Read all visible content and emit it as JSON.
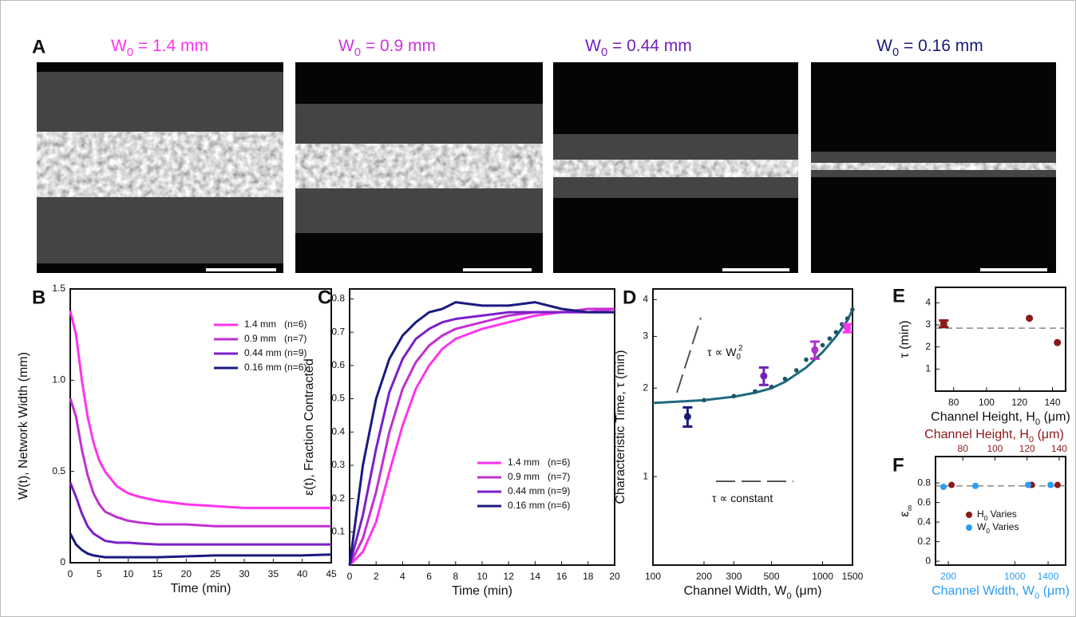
{
  "panel_a": {
    "panel": "A",
    "images": [
      {
        "title": {
          "text": "W",
          "sub": "0",
          "after": " = 1.4 mm"
        },
        "color": "#ff33ee"
      },
      {
        "title": {
          "text": "W",
          "sub": "0",
          "after": " = 0.9 mm"
        },
        "color": "#cc33dd"
      },
      {
        "title": {
          "text": "W",
          "sub": "0",
          "after": " = 0.44 mm"
        },
        "color": "#7022b8"
      },
      {
        "title": {
          "text": "W",
          "sub": "0",
          "after": " = 0.16 mm"
        },
        "color": "#1a1a7a"
      }
    ]
  },
  "chart_data": [
    {
      "panel": "B",
      "type": "line",
      "xlabel": "Time (min)",
      "ylabel": "W(t), Network Width (mm)",
      "legend": "upper right",
      "x": [
        0,
        1,
        2,
        3,
        4,
        5,
        6,
        8,
        10,
        12,
        15,
        20,
        25,
        30,
        35,
        40,
        45
      ],
      "xlim": [
        0,
        45
      ],
      "xticks": [
        0,
        5,
        10,
        15,
        20,
        25,
        30,
        35,
        40,
        45
      ],
      "ylim": [
        0,
        1.5
      ],
      "yticks": [
        0,
        0.5,
        {
          "value": 1,
          "label": "1.0"
        },
        1.5
      ],
      "series": [
        {
          "name": "1.4 mm   (n=6)",
          "color": "#ff33ee",
          "values": [
            1.38,
            1.25,
            1.0,
            0.8,
            0.66,
            0.56,
            0.5,
            0.42,
            0.38,
            0.36,
            0.34,
            0.32,
            0.31,
            0.3,
            0.3,
            0.3,
            0.3
          ]
        },
        {
          "name": "0.9 mm   (n=7)",
          "color": "#c030d0",
          "values": [
            0.9,
            0.8,
            0.62,
            0.48,
            0.38,
            0.32,
            0.28,
            0.25,
            0.23,
            0.22,
            0.21,
            0.21,
            0.2,
            0.2,
            0.2,
            0.2,
            0.2
          ]
        },
        {
          "name": "0.44 mm (n=9)",
          "color": "#7a20c8",
          "values": [
            0.44,
            0.36,
            0.27,
            0.2,
            0.16,
            0.14,
            0.12,
            0.11,
            0.11,
            0.105,
            0.1,
            0.1,
            0.1,
            0.1,
            0.1,
            0.1,
            0.1
          ]
        },
        {
          "name": "0.16 mm (n=6)",
          "color": "#1a1a80",
          "values": [
            0.16,
            0.1,
            0.07,
            0.05,
            0.04,
            0.035,
            0.03,
            0.03,
            0.03,
            0.03,
            0.03,
            0.035,
            0.04,
            0.04,
            0.04,
            0.04,
            0.045
          ]
        }
      ]
    },
    {
      "panel": "C",
      "type": "line",
      "xlabel": "Time (min)",
      "ylabel": "ε(t), Fraction Contracted",
      "legend": "lower right",
      "x": [
        0,
        1,
        2,
        3,
        4,
        5,
        6,
        7,
        8,
        10,
        12,
        14,
        16,
        18,
        20
      ],
      "xlim": [
        0,
        20
      ],
      "xticks": [
        0,
        2,
        4,
        6,
        8,
        10,
        12,
        14,
        16,
        18,
        20
      ],
      "ylim": [
        0,
        0.83
      ],
      "yticks": [
        0.1,
        0.2,
        0.3,
        0.4,
        0.5,
        0.6,
        0.7,
        0.8
      ],
      "series": [
        {
          "name": "1.4 mm   (n=6)",
          "color": "#ff33ee",
          "values": [
            0,
            0.04,
            0.13,
            0.28,
            0.42,
            0.53,
            0.6,
            0.65,
            0.68,
            0.71,
            0.73,
            0.75,
            0.76,
            0.76,
            0.77
          ]
        },
        {
          "name": "0.9 mm   (n=7)",
          "color": "#c030d0",
          "values": [
            0,
            0.08,
            0.22,
            0.4,
            0.53,
            0.61,
            0.66,
            0.69,
            0.71,
            0.73,
            0.75,
            0.76,
            0.76,
            0.77,
            0.77
          ]
        },
        {
          "name": "0.44 mm (n=9)",
          "color": "#7a20c8",
          "values": [
            0,
            0.15,
            0.35,
            0.52,
            0.62,
            0.68,
            0.71,
            0.73,
            0.74,
            0.75,
            0.76,
            0.76,
            0.76,
            0.76,
            0.76
          ]
        },
        {
          "name": "0.16 mm (n=6)",
          "color": "#1a1a80",
          "values": [
            0,
            0.3,
            0.5,
            0.62,
            0.69,
            0.73,
            0.76,
            0.77,
            0.79,
            0.78,
            0.78,
            0.79,
            0.77,
            0.76,
            0.76
          ]
        }
      ]
    },
    {
      "panel": "D",
      "type": "scatter",
      "xscale": "log",
      "yscale": "log",
      "xlabel": {
        "text": "Channel Width, W",
        "sub": "0",
        "after": " (μm)"
      },
      "ylabel": "Characteristic Time, τ (min)",
      "xlim": [
        100,
        1500
      ],
      "xticks": [
        100,
        200,
        300,
        500,
        1000,
        1500
      ],
      "ylim": [
        0.5,
        4.35
      ],
      "yticks": [
        1,
        2,
        3,
        4
      ],
      "points": {
        "x": [
          160,
          450,
          900,
          1400
        ],
        "values": [
          1.6,
          2.2,
          2.7,
          3.2
        ],
        "errors": [
          0.12,
          0.15,
          0.18,
          0.1
        ],
        "colors": [
          "#1a1a7a",
          "#7022b8",
          "#b030d0",
          "#ff33ee"
        ]
      },
      "fit": {
        "color": "#1f6a80",
        "x": [
          100,
          200,
          300,
          400,
          500,
          600,
          800,
          1000,
          1200,
          1400,
          1500
        ],
        "values": [
          1.78,
          1.82,
          1.87,
          1.93,
          2.0,
          2.1,
          2.35,
          2.65,
          3.0,
          3.4,
          3.7
        ]
      },
      "dots": {
        "color": "#1f5565",
        "x": [
          200,
          300,
          400,
          500,
          600,
          700,
          800,
          900,
          1000,
          1100,
          1200,
          1300,
          1400,
          1500
        ],
        "values": [
          1.82,
          1.88,
          1.95,
          2.02,
          2.15,
          2.3,
          2.5,
          2.65,
          2.8,
          2.95,
          3.1,
          3.3,
          3.45,
          3.7
        ]
      },
      "annotations": [
        {
          "text": "τ ∝ W",
          "sub": "0",
          "sup": "2"
        },
        {
          "text": "τ ∝ constant"
        }
      ]
    },
    {
      "panel": "E",
      "type": "scatter",
      "xlabel": {
        "text": "Channel Height, H",
        "sub": "0",
        "after": " (μm)"
      },
      "ylabel": "τ (min)",
      "xlim": [
        69,
        148
      ],
      "xticks": [
        80,
        100,
        120,
        140
      ],
      "ylim": [
        0,
        4.7
      ],
      "yticks": [
        1,
        2,
        3,
        4
      ],
      "points": {
        "x": [
          74,
          126,
          143
        ],
        "values": [
          3.05,
          3.3,
          2.2
        ],
        "errors": [
          0.15,
          null,
          null
        ],
        "colors": [
          "#8b1a1a",
          "#8b1a1a",
          "#8b1a1a"
        ]
      },
      "reference": 2.85
    },
    {
      "panel": "F",
      "type": "scatter",
      "legend": "lower left",
      "xlabel": {
        "text": "Channel Width, W",
        "sub": "0",
        "after": " (μm)"
      },
      "xcolor": "#2a9df4",
      "x2label": {
        "text": "Channel Height, H",
        "sub": "0",
        "after": " (μm)"
      },
      "x2color": "#8b1a1a",
      "ylabel": {
        "text": "ε",
        "sub": "∞"
      },
      "xlim": [
        46,
        1611
      ],
      "xticks": [
        200,
        1000,
        1400
      ],
      "x2lim": [
        63,
        144
      ],
      "x2ticks": [
        80,
        100,
        120,
        140
      ],
      "ylim": [
        -0.04,
        1.07
      ],
      "yticks": [
        0,
        0.2,
        0.4,
        0.6,
        0.8
      ],
      "reference": 0.77,
      "series": [
        {
          "name": {
            "text": "H",
            "sub": "0",
            "after": " Varies"
          },
          "color": "#8b1a1a",
          "axis": "x2",
          "x": [
            73,
            123,
            139
          ],
          "values": [
            0.78,
            0.78,
            0.78
          ]
        },
        {
          "name": {
            "text": "W",
            "sub": "0",
            "after": " Varies"
          },
          "color": "#2a9df4",
          "x": [
            142,
            526,
            1160,
            1430
          ],
          "values": [
            0.76,
            0.77,
            0.78,
            0.78
          ]
        }
      ]
    }
  ]
}
